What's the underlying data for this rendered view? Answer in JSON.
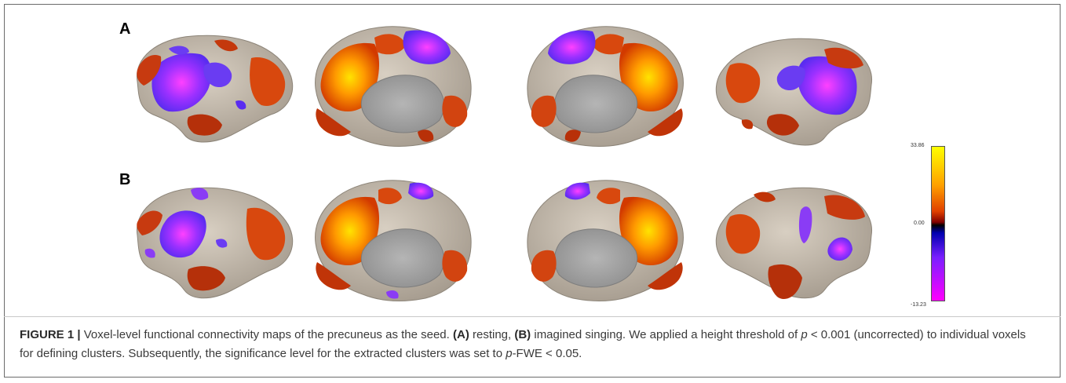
{
  "figure": {
    "panel_a_label": "A",
    "panel_b_label": "B",
    "colorbar": {
      "max_label": "33.86",
      "mid_label": "0.00",
      "min_label": "-13.23",
      "colors": [
        "#ffff00",
        "#ffa000",
        "#e04000",
        "#800000",
        "#000000",
        "#0000b0",
        "#7a1fff",
        "#ff00ff"
      ]
    },
    "caption": {
      "figure_label": "FIGURE 1 |",
      "text_1": " Voxel-level functional connectivity maps of the precuneus as the seed. ",
      "a_label": "(A)",
      "text_2": " resting, ",
      "b_label": "(B)",
      "text_3": " imagined singing. We applied a height threshold of ",
      "p_var": "p",
      "text_4": " < 0.001 (uncorrected) to individual voxels for defining clusters. Subsequently, the significance level for the extracted clusters was set to ",
      "p_var_2": "p",
      "text_5": "-FWE < 0.05."
    }
  }
}
